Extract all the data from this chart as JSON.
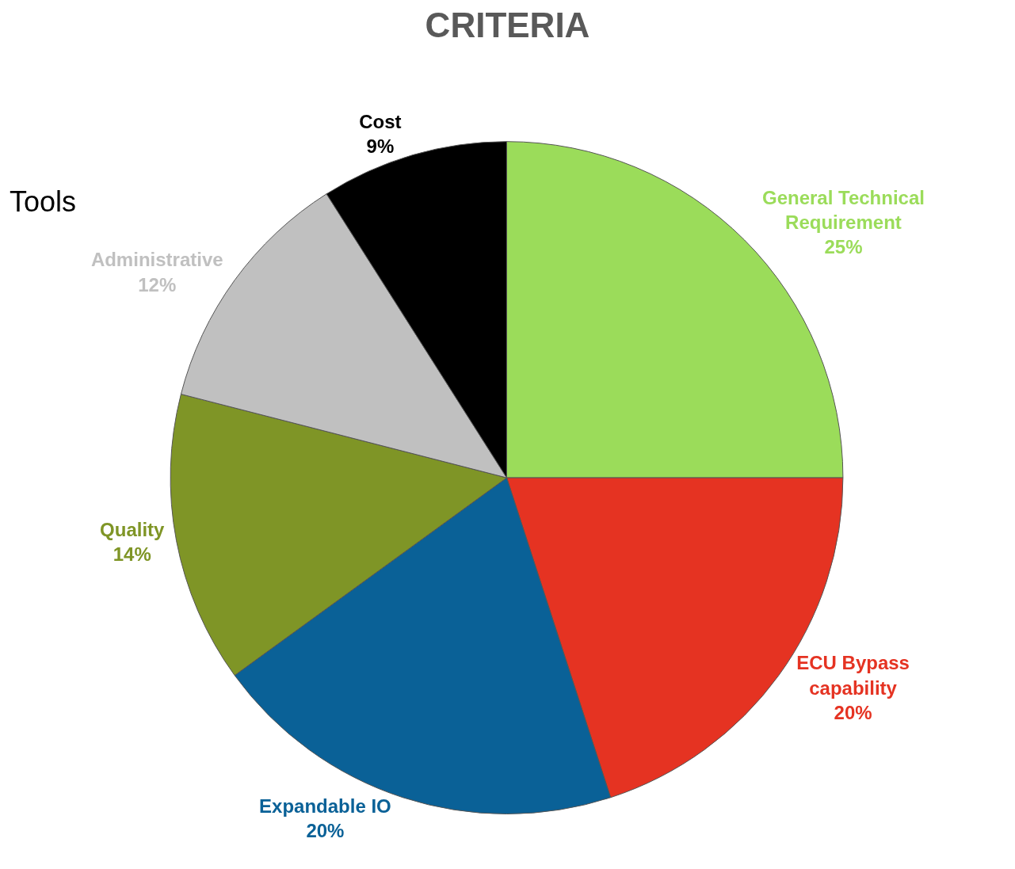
{
  "chart_data": {
    "type": "pie",
    "title": "CRITERIA",
    "categories": [
      "General Technical Requirement",
      "ECU Bypass capability",
      "Expandable IO",
      "Quality",
      "Administrative",
      "Cost"
    ],
    "values": [
      25,
      20,
      20,
      14,
      12,
      9
    ],
    "value_labels": [
      "25%",
      "20%",
      "20%",
      "14%",
      "12%",
      "9%"
    ],
    "colors": [
      "#9bdc5a",
      "#e53322",
      "#0a6197",
      "#7f9526",
      "#c0c0c0",
      "#000000"
    ],
    "annotations": [
      "Tools"
    ],
    "legend": false
  }
}
